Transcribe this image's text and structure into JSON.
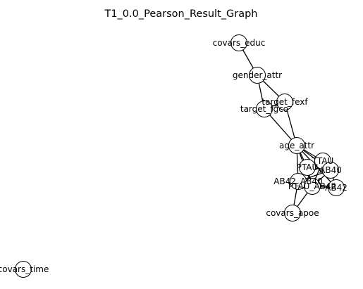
{
  "title": "T1_0.0_Pearson_Result_Graph",
  "nodes": [
    {
      "id": "covars_educ",
      "label": "covars_educ"
    },
    {
      "id": "gender_attr",
      "label": "gender_attr"
    },
    {
      "id": "target_fexf",
      "label": "target_fexf"
    },
    {
      "id": "target_fgco",
      "label": "target_fgco"
    },
    {
      "id": "age_attr",
      "label": "age_attr"
    },
    {
      "id": "TTAU",
      "label": "TTAU"
    },
    {
      "id": "PTAU",
      "label": "PTAU"
    },
    {
      "id": "AB40",
      "label": "AB40"
    },
    {
      "id": "AB42_AB40",
      "label": "AB42_AB40"
    },
    {
      "id": "PTAU_AB42",
      "label": "PTAU_AB42"
    },
    {
      "id": "AB42",
      "label": "AB42"
    },
    {
      "id": "covars_apoe",
      "label": "covars_apoe"
    },
    {
      "id": "covars_time",
      "label": "covars_time"
    }
  ],
  "edges": [
    [
      "covars_educ",
      "gender_attr"
    ],
    [
      "gender_attr",
      "target_fexf"
    ],
    [
      "gender_attr",
      "target_fgco"
    ],
    [
      "target_fexf",
      "target_fgco"
    ],
    [
      "target_fexf",
      "age_attr"
    ],
    [
      "target_fgco",
      "age_attr"
    ],
    [
      "age_attr",
      "TTAU"
    ],
    [
      "age_attr",
      "PTAU"
    ],
    [
      "age_attr",
      "AB40"
    ],
    [
      "age_attr",
      "AB42_AB40"
    ],
    [
      "age_attr",
      "PTAU_AB42"
    ],
    [
      "age_attr",
      "AB42"
    ],
    [
      "TTAU",
      "PTAU"
    ],
    [
      "TTAU",
      "AB40"
    ],
    [
      "TTAU",
      "PTAU_AB42"
    ],
    [
      "PTAU",
      "AB40"
    ],
    [
      "PTAU",
      "AB42_AB40"
    ],
    [
      "PTAU",
      "PTAU_AB42"
    ],
    [
      "AB40",
      "AB42_AB40"
    ],
    [
      "AB40",
      "PTAU_AB42"
    ],
    [
      "AB40",
      "AB42"
    ],
    [
      "AB42_AB40",
      "PTAU_AB42"
    ],
    [
      "AB42_AB40",
      "AB42"
    ],
    [
      "PTAU_AB42",
      "AB42"
    ],
    [
      "AB42_AB40",
      "covars_apoe"
    ],
    [
      "PTAU_AB42",
      "covars_apoe"
    ]
  ]
}
